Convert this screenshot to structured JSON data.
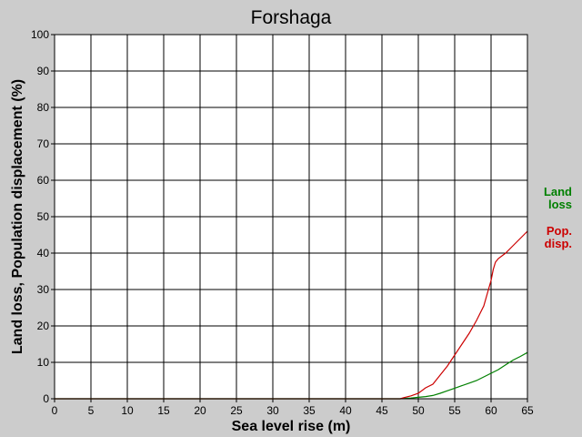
{
  "chart_data": {
    "type": "line",
    "title": "Forshaga",
    "xlabel": "Sea level rise (m)",
    "ylabel": "Land loss, Population displacement (%)",
    "xlim": [
      0,
      65
    ],
    "ylim": [
      0,
      100
    ],
    "xticks": [
      0,
      5,
      10,
      15,
      20,
      25,
      30,
      35,
      40,
      45,
      50,
      55,
      60,
      65
    ],
    "yticks": [
      0,
      10,
      20,
      30,
      40,
      50,
      60,
      70,
      80,
      90,
      100
    ],
    "grid": true,
    "legend_position": "right",
    "series": [
      {
        "name": "Land loss",
        "legend_lines": [
          "Land",
          "loss"
        ],
        "color": "#008000",
        "x": [
          0,
          47.5,
          48,
          49,
          50,
          51,
          52,
          53,
          54,
          55,
          56,
          57,
          58,
          59,
          60,
          61,
          62,
          63,
          64,
          65
        ],
        "y": [
          0,
          0,
          0.1,
          0.2,
          0.4,
          0.6,
          0.9,
          1.5,
          2.2,
          2.9,
          3.6,
          4.3,
          5.0,
          6.0,
          7.0,
          8.0,
          9.3,
          10.6,
          11.6,
          12.7
        ]
      },
      {
        "name": "Pop. disp.",
        "legend_lines": [
          "Pop.",
          "disp."
        ],
        "color": "#cc0000",
        "x": [
          0,
          47.5,
          48,
          49,
          50,
          51,
          52,
          53,
          54,
          55,
          56,
          57,
          58,
          59,
          59.5,
          60,
          60.3,
          60.6,
          61,
          62,
          63,
          64,
          65
        ],
        "y": [
          0,
          0,
          0.3,
          0.8,
          1.5,
          3.0,
          4.0,
          6.5,
          9.0,
          12.0,
          15.0,
          18.0,
          21.5,
          25.5,
          29.0,
          32.5,
          35.5,
          37.5,
          38.5,
          40.0,
          42.0,
          44.0,
          46.0
        ]
      }
    ]
  }
}
